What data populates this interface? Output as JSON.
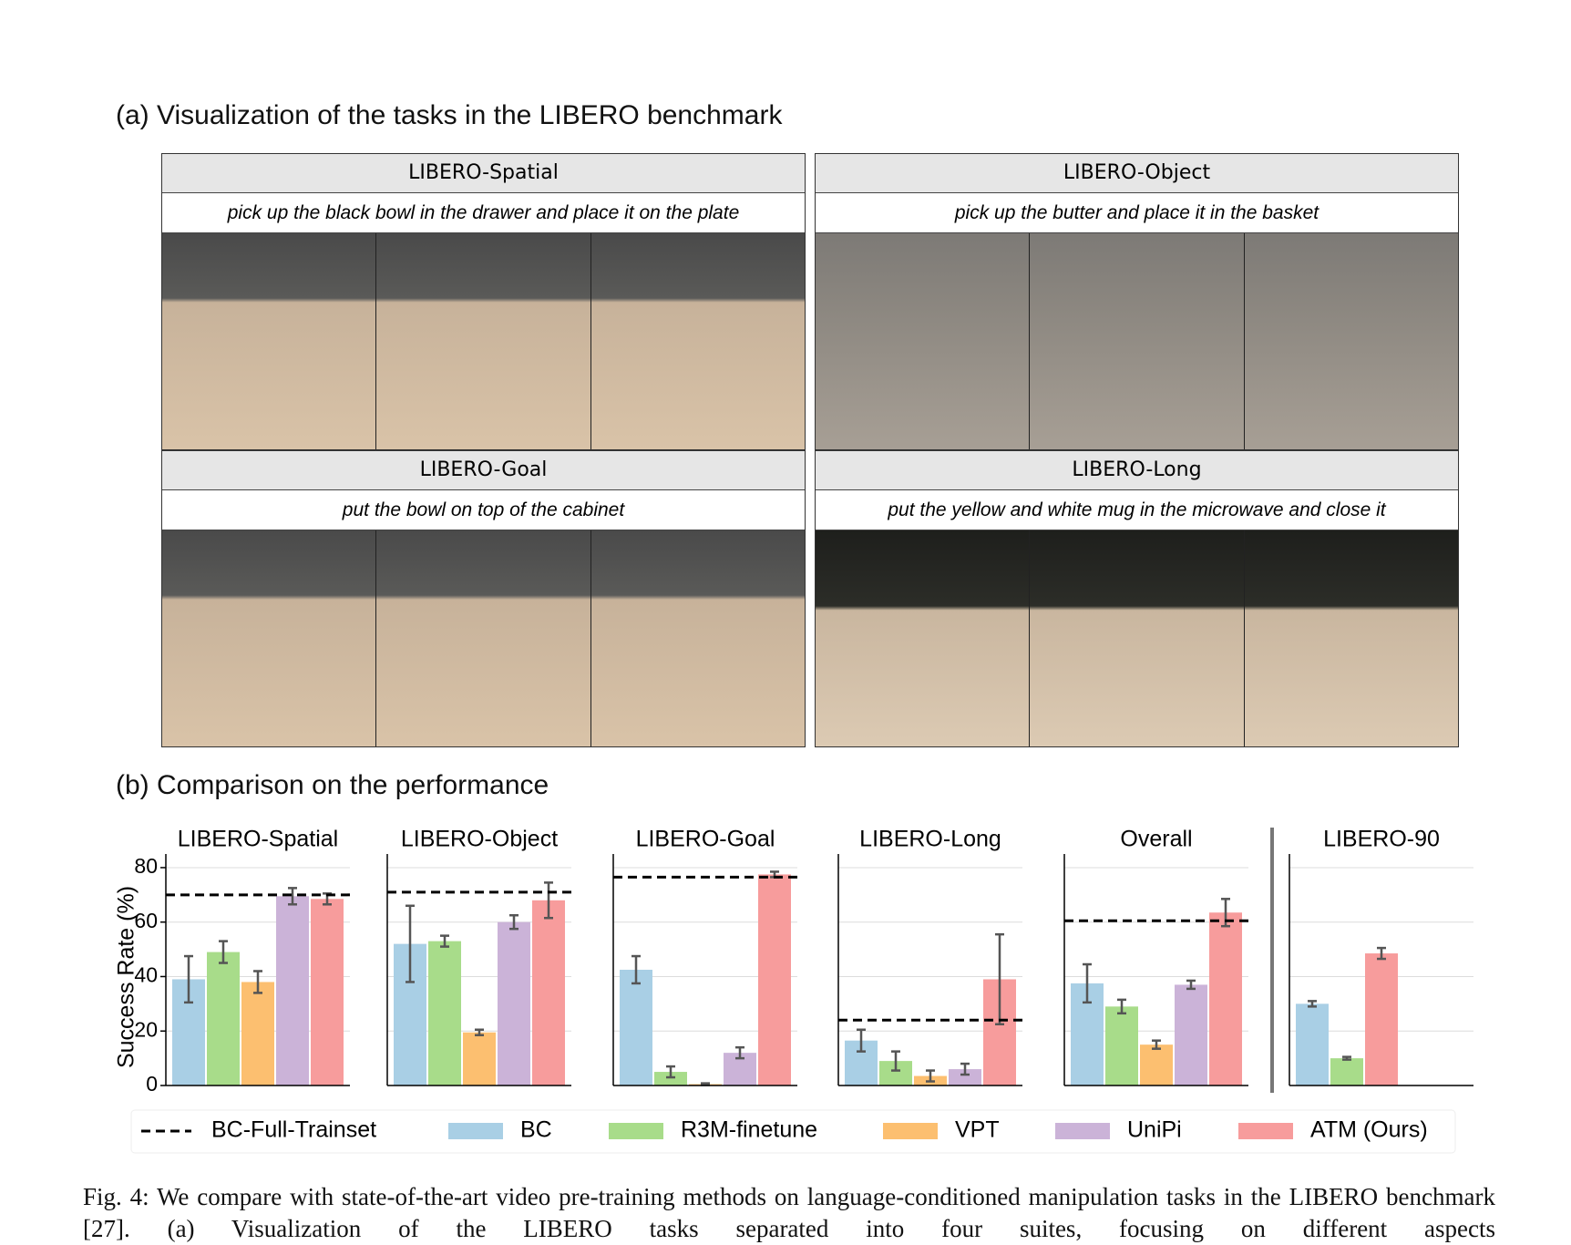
{
  "section_a": {
    "title": "(a) Visualization of the tasks in the LIBERO benchmark",
    "panels": [
      {
        "name": "LIBERO-Spatial",
        "instruction": "pick up the black bowl in the drawer and place it on the plate"
      },
      {
        "name": "LIBERO-Object",
        "instruction": "pick up the butter and place it in the basket"
      },
      {
        "name": "LIBERO-Goal",
        "instruction": "put the bowl on top of the cabinet"
      },
      {
        "name": "LIBERO-Long",
        "instruction": "put the yellow and white mug in the microwave and close it"
      }
    ]
  },
  "section_b": {
    "title": "(b) Comparison on the performance",
    "y_label": "Success Rate (%)",
    "baseline_name": "BC-Full-Trainset",
    "methods": [
      {
        "name": "BC",
        "color": "#a9cfe5"
      },
      {
        "name": "R3M-finetune",
        "color": "#a8dc8a"
      },
      {
        "name": "VPT",
        "color": "#fcbf70"
      },
      {
        "name": "UniPi",
        "color": "#cbb3d8"
      },
      {
        "name": "ATM (Ours)",
        "color": "#f79c9c"
      }
    ]
  },
  "chart_data": [
    {
      "type": "bar",
      "title": "LIBERO-Spatial",
      "values": [
        39,
        49,
        38,
        69.5,
        68.5
      ],
      "errors": [
        8.5,
        4,
        4,
        3,
        2
      ],
      "baseline": 70,
      "ylim": [
        0,
        85
      ],
      "yticks": [
        0,
        20,
        40,
        60,
        80
      ]
    },
    {
      "type": "bar",
      "title": "LIBERO-Object",
      "values": [
        52,
        53,
        19.5,
        60,
        68
      ],
      "errors": [
        14,
        2,
        1,
        2.5,
        6.5
      ],
      "baseline": 71,
      "ylim": [
        0,
        85
      ],
      "yticks": [
        0,
        20,
        40,
        60,
        80
      ]
    },
    {
      "type": "bar",
      "title": "LIBERO-Goal",
      "values": [
        42.5,
        5,
        0.5,
        12,
        77.5
      ],
      "errors": [
        5,
        2,
        0.3,
        2,
        1
      ],
      "baseline": 76.5,
      "ylim": [
        0,
        85
      ],
      "yticks": [
        0,
        20,
        40,
        60,
        80
      ]
    },
    {
      "type": "bar",
      "title": "LIBERO-Long",
      "values": [
        16.5,
        9,
        3.5,
        6,
        39
      ],
      "errors": [
        4,
        3.5,
        2,
        2,
        16.5
      ],
      "baseline": 24,
      "ylim": [
        0,
        85
      ],
      "yticks": [
        0,
        20,
        40,
        60,
        80
      ]
    },
    {
      "type": "bar",
      "title": "Overall",
      "values": [
        37.5,
        29,
        15,
        37,
        63.5
      ],
      "errors": [
        7,
        2.5,
        1.5,
        1.5,
        5
      ],
      "baseline": 60.5,
      "ylim": [
        0,
        85
      ],
      "yticks": [
        0,
        20,
        40,
        60,
        80
      ]
    },
    {
      "type": "bar",
      "title": "LIBERO-90",
      "values": [
        30,
        10,
        null,
        null,
        48.5
      ],
      "errors": [
        1,
        0.5,
        null,
        null,
        2
      ],
      "ylim": [
        0,
        85
      ],
      "yticks": [
        0,
        20,
        40,
        60,
        80
      ]
    }
  ],
  "caption": "Fig. 4: We compare with state-of-the-art video pre-training methods on language-conditioned manipulation tasks in the LIBERO benchmark [27]. (a) Visualization of the LIBERO tasks separated into four suites, focusing on different aspects"
}
